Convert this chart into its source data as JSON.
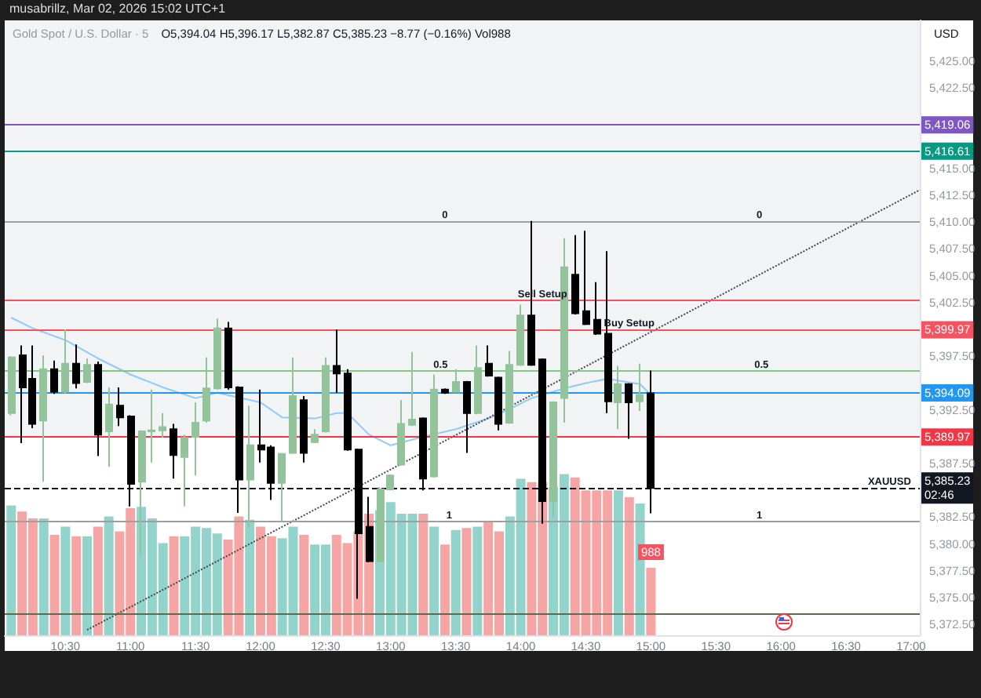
{
  "chart_data": {
    "type": "candlestick",
    "title": "Gold Spot / U.S. Dollar · 5",
    "subtitle": "O5,394.04 H5,396.17 L5,382.87 C5,385.23 −8.77 (−0.16%) Vol988",
    "ylabel": "USD",
    "annotations": [
      "musabrillz, Mar 02, 2026 15:02 UTC+1",
      {
        "text": "Sell Setup",
        "x": "2026-03-02T14:10",
        "y": 5402.7
      },
      {
        "text": "Buy Setup",
        "x": "2026-03-02T14:50",
        "y": 5399.97
      },
      {
        "text": "XAUUSD",
        "x": "2026-03-02T16:50",
        "y": 5385.23
      },
      {
        "text": "0",
        "x": "2026-03-02T13:25",
        "y": 5410.1
      },
      {
        "text": "0",
        "x": "2026-03-02T15:50",
        "y": 5410.1
      },
      {
        "text": "0.5",
        "x": "2026-03-02T13:23",
        "y": 5396.1
      },
      {
        "text": "0.5",
        "x": "2026-03-02T15:51",
        "y": 5396.1
      },
      {
        "text": "1",
        "x": "2026-03-02T13:27",
        "y": 5382.1
      },
      {
        "text": "1",
        "x": "2026-03-02T15:50",
        "y": 5382.1
      }
    ],
    "x": [
      "2026-03-02T10:05",
      "2026-03-02T10:10",
      "2026-03-02T10:15",
      "2026-03-02T10:20",
      "2026-03-02T10:25",
      "2026-03-02T10:30",
      "2026-03-02T10:35",
      "2026-03-02T10:40",
      "2026-03-02T10:45",
      "2026-03-02T10:50",
      "2026-03-02T10:55",
      "2026-03-02T11:00",
      "2026-03-02T11:05",
      "2026-03-02T11:10",
      "2026-03-02T11:15",
      "2026-03-02T11:20",
      "2026-03-02T11:25",
      "2026-03-02T11:30",
      "2026-03-02T11:35",
      "2026-03-02T11:40",
      "2026-03-02T11:45",
      "2026-03-02T11:50",
      "2026-03-02T11:55",
      "2026-03-02T12:00",
      "2026-03-02T12:05",
      "2026-03-02T12:10",
      "2026-03-02T12:15",
      "2026-03-02T12:20",
      "2026-03-02T12:25",
      "2026-03-02T12:30",
      "2026-03-02T12:35",
      "2026-03-02T12:40",
      "2026-03-02T12:45",
      "2026-03-02T12:50",
      "2026-03-02T12:55",
      "2026-03-02T13:00",
      "2026-03-02T13:05",
      "2026-03-02T13:10",
      "2026-03-02T13:15",
      "2026-03-02T13:20",
      "2026-03-02T13:25",
      "2026-03-02T13:30",
      "2026-03-02T13:35",
      "2026-03-02T13:40",
      "2026-03-02T13:45",
      "2026-03-02T13:50",
      "2026-03-02T13:55",
      "2026-03-02T14:00",
      "2026-03-02T14:05",
      "2026-03-02T14:10",
      "2026-03-02T14:15",
      "2026-03-02T14:20",
      "2026-03-02T14:25",
      "2026-03-02T14:30",
      "2026-03-02T14:35",
      "2026-03-02T14:40",
      "2026-03-02T14:45",
      "2026-03-02T14:50",
      "2026-03-02T14:55",
      "2026-03-02T15:00"
    ],
    "ohlc": [
      [
        5392.2,
        5397.5,
        5392.0,
        5397.4
      ],
      [
        5397.6,
        5398.5,
        5389.4,
        5394.6
      ],
      [
        5395.4,
        5398.5,
        5390.8,
        5391.2
      ],
      [
        5391.5,
        5397.6,
        5385.8,
        5396.3
      ],
      [
        5396.3,
        5397.1,
        5394.0,
        5394.2
      ],
      [
        5394.2,
        5400.0,
        5394.0,
        5396.8
      ],
      [
        5396.8,
        5398.6,
        5394.5,
        5395.0
      ],
      [
        5395.1,
        5397.3,
        5395.0,
        5396.7
      ],
      [
        5396.7,
        5397.0,
        5388.2,
        5390.2
      ],
      [
        5390.5,
        5394.6,
        5387.2,
        5393.0
      ],
      [
        5392.9,
        5394.6,
        5391.0,
        5391.8
      ],
      [
        5391.9,
        5392.0,
        5383.5,
        5385.6
      ],
      [
        5385.8,
        5390.6,
        5378.8,
        5390.5
      ],
      [
        5390.5,
        5394.4,
        5387.6,
        5390.6
      ],
      [
        5390.6,
        5392.2,
        5389.9,
        5390.9
      ],
      [
        5390.7,
        5391.2,
        5386.1,
        5388.3
      ],
      [
        5388.1,
        5390.2,
        5383.5,
        5389.9
      ],
      [
        5390.0,
        5393.2,
        5386.4,
        5391.3
      ],
      [
        5391.5,
        5397.4,
        5391.3,
        5394.5
      ],
      [
        5394.5,
        5401.0,
        5394.4,
        5400.1
      ],
      [
        5400.1,
        5400.7,
        5394.4,
        5394.6
      ],
      [
        5394.6,
        5394.7,
        5382.9,
        5386.0
      ],
      [
        5386.0,
        5392.9,
        5381.5,
        5389.2
      ],
      [
        5389.2,
        5394.4,
        5387.6,
        5388.8
      ],
      [
        5389.0,
        5389.2,
        5384.1,
        5385.7
      ],
      [
        5385.7,
        5388.5,
        5382.1,
        5388.4
      ],
      [
        5388.5,
        5397.4,
        5388.4,
        5393.8
      ],
      [
        5393.4,
        5393.8,
        5387.6,
        5388.5
      ],
      [
        5389.5,
        5390.7,
        5389.4,
        5390.2
      ],
      [
        5390.5,
        5397.4,
        5390.4,
        5396.6
      ],
      [
        5396.6,
        5400.0,
        5394.1,
        5395.9
      ],
      [
        5395.9,
        5396.3,
        5388.7,
        5388.8
      ],
      [
        5388.8,
        5388.9,
        5374.9,
        5381.0
      ],
      [
        5381.6,
        5384.4,
        5378.3,
        5378.4
      ],
      [
        5378.4,
        5385.3,
        5378.3,
        5385.1
      ],
      [
        5385.1,
        5386.5,
        5385.0,
        5386.4
      ],
      [
        5387.4,
        5393.4,
        5387.3,
        5391.2
      ],
      [
        5391.1,
        5397.9,
        5391.0,
        5391.6
      ],
      [
        5391.7,
        5391.8,
        5385.0,
        5386.1
      ],
      [
        5386.3,
        5395.8,
        5386.2,
        5394.4
      ],
      [
        5394.4,
        5394.5,
        5394.0,
        5394.1
      ],
      [
        5394.2,
        5396.3,
        5394.1,
        5395.1
      ],
      [
        5395.1,
        5395.2,
        5388.5,
        5392.2
      ],
      [
        5392.2,
        5398.5,
        5392.1,
        5396.4
      ],
      [
        5396.8,
        5398.5,
        5395.6,
        5395.7
      ],
      [
        5395.5,
        5395.6,
        5390.6,
        5391.2
      ],
      [
        5391.3,
        5398.0,
        5391.2,
        5396.7
      ],
      [
        5396.7,
        5402.3,
        5396.6,
        5401.3
      ],
      [
        5401.3,
        5410.1,
        5396.6,
        5396.7
      ],
      [
        5397.2,
        5397.3,
        5381.9,
        5384.0
      ],
      [
        5384.0,
        5393.3,
        5382.5,
        5393.2
      ],
      [
        5393.6,
        5408.5,
        5391.3,
        5405.8
      ],
      [
        5405.1,
        5408.8,
        5401.4,
        5401.5
      ],
      [
        5401.7,
        5409.2,
        5400.4,
        5400.5
      ],
      [
        5400.9,
        5404.4,
        5399.5,
        5399.6
      ],
      [
        5399.6,
        5407.3,
        5392.2,
        5393.3
      ],
      [
        5393.2,
        5396.6,
        5390.7,
        5394.9
      ],
      [
        5394.9,
        5395.0,
        5389.8,
        5393.2
      ],
      [
        5393.3,
        5396.8,
        5392.4,
        5393.9
      ],
      [
        5394.04,
        5396.17,
        5382.87,
        5385.23
      ]
    ],
    "colors": [
      "#93c39a",
      "#000000",
      "#000000",
      "#93c39a",
      "#000000",
      "#93c39a",
      "#000000",
      "#93c39a",
      "#000000",
      "#93c39a",
      "#000000",
      "#000000",
      "#93c39a",
      "#93c39a",
      "#93c39a",
      "#000000",
      "#93c39a",
      "#93c39a",
      "#93c39a",
      "#93c39a",
      "#000000",
      "#000000",
      "#93c39a",
      "#000000",
      "#000000",
      "#93c39a",
      "#93c39a",
      "#000000",
      "#93c39a",
      "#93c39a",
      "#000000",
      "#000000",
      "#000000",
      "#000000",
      "#93c39a",
      "#93c39a",
      "#93c39a",
      "#93c39a",
      "#000000",
      "#93c39a",
      "#000000",
      "#93c39a",
      "#000000",
      "#93c39a",
      "#000000",
      "#000000",
      "#93c39a",
      "#93c39a",
      "#000000",
      "#000000",
      "#93c39a",
      "#93c39a",
      "#000000",
      "#000000",
      "#000000",
      "#000000",
      "#93c39a",
      "#000000",
      "#93c39a",
      "#000000"
    ],
    "series": [
      {
        "type": "bar",
        "axis": "y2",
        "values": [
          1900,
          1810,
          1710,
          1710,
          1470,
          1590,
          1450,
          1450,
          1590,
          1740,
          1520,
          1860,
          1880,
          1710,
          1350,
          1450,
          1450,
          1590,
          1570,
          1490,
          1400,
          1740,
          1690,
          1590,
          1450,
          1420,
          1590,
          1470,
          1330,
          1330,
          1470,
          1350,
          1520,
          1780,
          1830,
          1950,
          1780,
          1780,
          1780,
          1590,
          1330,
          1540,
          1570,
          1590,
          1660,
          1520,
          1740,
          2290,
          2240,
          2240,
          2170,
          2360,
          2310,
          2120,
          2120,
          2120,
          2120,
          2020,
          1930,
          988
        ],
        "colors": [
          "#92d3cb",
          "#f5a5a3",
          "#f5a5a3",
          "#92d3cb",
          "#f5a5a3",
          "#92d3cb",
          "#f5a5a3",
          "#92d3cb",
          "#f5a5a3",
          "#92d3cb",
          "#f5a5a3",
          "#f5a5a3",
          "#92d3cb",
          "#92d3cb",
          "#92d3cb",
          "#f5a5a3",
          "#92d3cb",
          "#92d3cb",
          "#92d3cb",
          "#92d3cb",
          "#f5a5a3",
          "#f5a5a3",
          "#92d3cb",
          "#f5a5a3",
          "#f5a5a3",
          "#92d3cb",
          "#92d3cb",
          "#f5a5a3",
          "#92d3cb",
          "#92d3cb",
          "#f5a5a3",
          "#f5a5a3",
          "#f5a5a3",
          "#f5a5a3",
          "#92d3cb",
          "#92d3cb",
          "#92d3cb",
          "#92d3cb",
          "#f5a5a3",
          "#92d3cb",
          "#f5a5a3",
          "#92d3cb",
          "#f5a5a3",
          "#92d3cb",
          "#f5a5a3",
          "#f5a5a3",
          "#92d3cb",
          "#92d3cb",
          "#f5a5a3",
          "#f5a5a3",
          "#92d3cb",
          "#92d3cb",
          "#f5a5a3",
          "#f5a5a3",
          "#f5a5a3",
          "#f5a5a3",
          "#92d3cb",
          "#f5a5a3",
          "#92d3cb",
          "#f5a5a3"
        ],
        "value_labels": [
          null,
          null,
          null,
          null,
          null,
          null,
          null,
          null,
          null,
          null,
          null,
          null,
          null,
          null,
          null,
          null,
          null,
          null,
          null,
          null,
          null,
          null,
          null,
          null,
          null,
          null,
          null,
          null,
          null,
          null,
          null,
          null,
          null,
          null,
          null,
          null,
          null,
          null,
          null,
          null,
          null,
          null,
          null,
          null,
          null,
          null,
          null,
          null,
          null,
          null,
          null,
          null,
          null,
          null,
          null,
          null,
          null,
          null,
          null,
          "988"
        ]
      },
      {
        "type": "line",
        "color": "#90caf9",
        "x": [
          "2026-03-02T10:05",
          "2026-03-02T10:15",
          "2026-03-02T10:30",
          "2026-03-02T10:45",
          "2026-03-02T11:00",
          "2026-03-02T11:15",
          "2026-03-02T11:30",
          "2026-03-02T11:40",
          "2026-03-02T12:00",
          "2026-03-02T12:10",
          "2026-03-02T12:25",
          "2026-03-02T12:35",
          "2026-03-02T12:40",
          "2026-03-02T12:50",
          "2026-03-02T13:00",
          "2026-03-02T13:15",
          "2026-03-02T13:30",
          "2026-03-02T13:45",
          "2026-03-02T13:55",
          "2026-03-02T14:05",
          "2026-03-02T14:20",
          "2026-03-02T14:30",
          "2026-03-02T14:40",
          "2026-03-02T14:55",
          "2026-03-02T15:00"
        ],
        "values": [
          5401.1,
          5400.1,
          5399.0,
          5397.3,
          5395.8,
          5394.6,
          5393.6,
          5394.1,
          5393.2,
          5391.8,
          5391.7,
          5392.2,
          5392.2,
          5390.2,
          5389.2,
          5390.0,
          5390.7,
          5391.7,
          5392.6,
          5393.6,
          5394.5,
          5395.0,
          5395.4,
          5394.9,
          5393.9
        ]
      },
      {
        "type": "line",
        "color": "#434651",
        "line_style": "dotted",
        "x": [
          "2026-03-02T10:40",
          "2026-03-02T17:04"
        ],
        "values": [
          5372.0,
          5413.0
        ]
      }
    ],
    "xlim": [
      "2026-03-02T10:02",
      "2026-03-02T17:04"
    ],
    "xticks": [
      {
        "value": "2026-03-02T10:30",
        "label": "10:30"
      },
      {
        "value": "2026-03-02T11:00",
        "label": "11:00"
      },
      {
        "value": "2026-03-02T11:30",
        "label": "11:30"
      },
      {
        "value": "2026-03-02T12:00",
        "label": "12:00"
      },
      {
        "value": "2026-03-02T12:30",
        "label": "12:30"
      },
      {
        "value": "2026-03-02T13:00",
        "label": "13:00"
      },
      {
        "value": "2026-03-02T13:30",
        "label": "13:30"
      },
      {
        "value": "2026-03-02T14:00",
        "label": "14:00"
      },
      {
        "value": "2026-03-02T14:30",
        "label": "14:30"
      },
      {
        "value": "2026-03-02T15:00",
        "label": "15:00"
      },
      {
        "value": "2026-03-02T15:30",
        "label": "15:30"
      },
      {
        "value": "2026-03-02T16:00",
        "label": "16:00"
      },
      {
        "value": "2026-03-02T16:30",
        "label": "16:30"
      },
      {
        "value": "2026-03-02T17:00",
        "label": "17:00"
      }
    ],
    "ylim": [
      5371.5,
      5428.8
    ],
    "yticks": [
      {
        "value": 5372.5,
        "label": "5,372.50"
      },
      {
        "value": 5375,
        "label": "5,375.00"
      },
      {
        "value": 5377.5,
        "label": "5,377.50"
      },
      {
        "value": 5380,
        "label": "5,380.00"
      },
      {
        "value": 5382.5,
        "label": "5,382.50"
      },
      {
        "value": 5387.5,
        "label": "5,387.50"
      },
      {
        "value": 5392.5,
        "label": "5,392.50"
      },
      {
        "value": 5397.5,
        "label": "5,397.50"
      },
      {
        "value": 5402.5,
        "label": "5,402.50"
      },
      {
        "value": 5405,
        "label": "5,405.00"
      },
      {
        "value": 5407.5,
        "label": "5,407.50"
      },
      {
        "value": 5410,
        "label": "5,410.00"
      },
      {
        "value": 5412.5,
        "label": "5,412.50"
      },
      {
        "value": 5415,
        "label": "5,415.00"
      },
      {
        "value": 5422.5,
        "label": "5,422.50"
      },
      {
        "value": 5425,
        "label": "5,425.00"
      }
    ],
    "y2lim": [
      0,
      9000
    ],
    "ref_lines": [
      {
        "axis": "y",
        "value": 5419.06,
        "label": "5,419.06",
        "color": "#7e57c2"
      },
      {
        "axis": "y",
        "value": 5416.61,
        "label": "5,416.61",
        "color": "#089981"
      },
      {
        "axis": "y",
        "value": 5399.97,
        "label": "5,399.97",
        "color": "#f7525f"
      },
      {
        "axis": "y",
        "value": 5394.09,
        "label": "5,394.09",
        "color": "#2196f3"
      },
      {
        "axis": "y",
        "value": 5389.97,
        "label": "5,389.97",
        "color": "#f23645"
      },
      {
        "axis": "y",
        "value": 5385.23,
        "label": "5,385.23\n02:46",
        "color": "#131722",
        "line_style": "dashed"
      },
      {
        "axis": "y",
        "value": 5402.7,
        "color": "#f7525f"
      },
      {
        "axis": "y",
        "value": 5410.1,
        "color": "#9e9e9e"
      },
      {
        "axis": "y",
        "value": 5396.1,
        "color": "#81c784"
      },
      {
        "axis": "y",
        "value": 5382.1,
        "color": "#9e9e9e"
      },
      {
        "axis": "y",
        "value": 5373.5,
        "color": "#5d6b4f"
      }
    ],
    "bands": [
      {
        "axis": "y",
        "from": 5389.97,
        "to": 5428.8,
        "color": "#f2f3f5"
      }
    ]
  }
}
